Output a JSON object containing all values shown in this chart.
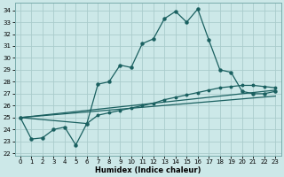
{
  "xlabel": "Humidex (Indice chaleur)",
  "bg_color": "#cce8e8",
  "grid_color": "#aacccc",
  "line_color": "#1a6060",
  "xlim": [
    -0.5,
    23.5
  ],
  "ylim": [
    21.8,
    34.6
  ],
  "yticks": [
    22,
    23,
    24,
    25,
    26,
    27,
    28,
    29,
    30,
    31,
    32,
    33,
    34
  ],
  "xticks": [
    0,
    1,
    2,
    3,
    4,
    5,
    6,
    7,
    8,
    9,
    10,
    11,
    12,
    13,
    14,
    15,
    16,
    17,
    18,
    19,
    20,
    21,
    22,
    23
  ],
  "line1_x": [
    0,
    1,
    2,
    3,
    4,
    5,
    6,
    7,
    8,
    9,
    10,
    11,
    12,
    13,
    14,
    15,
    16,
    17,
    18,
    19,
    20,
    21,
    22,
    23
  ],
  "line1_y": [
    25.0,
    23.2,
    23.3,
    24.0,
    24.2,
    22.7,
    24.5,
    27.8,
    28.0,
    29.4,
    29.2,
    31.2,
    31.6,
    33.3,
    33.9,
    33.0,
    34.1,
    31.5,
    29.0,
    28.8,
    27.2,
    27.0,
    27.0,
    27.2
  ],
  "line2_x": [
    0,
    6,
    7,
    8,
    9,
    10,
    11,
    12,
    13,
    14,
    15,
    16,
    17,
    18,
    19,
    20,
    21,
    22,
    23
  ],
  "line2_y": [
    25.0,
    24.5,
    25.2,
    25.4,
    25.6,
    25.8,
    26.0,
    26.2,
    26.5,
    26.7,
    26.9,
    27.1,
    27.3,
    27.5,
    27.6,
    27.7,
    27.7,
    27.6,
    27.5
  ],
  "line3_x": [
    0,
    23
  ],
  "line3_y": [
    25.0,
    27.3
  ],
  "line4_x": [
    0,
    23
  ],
  "line4_y": [
    25.0,
    26.8
  ]
}
